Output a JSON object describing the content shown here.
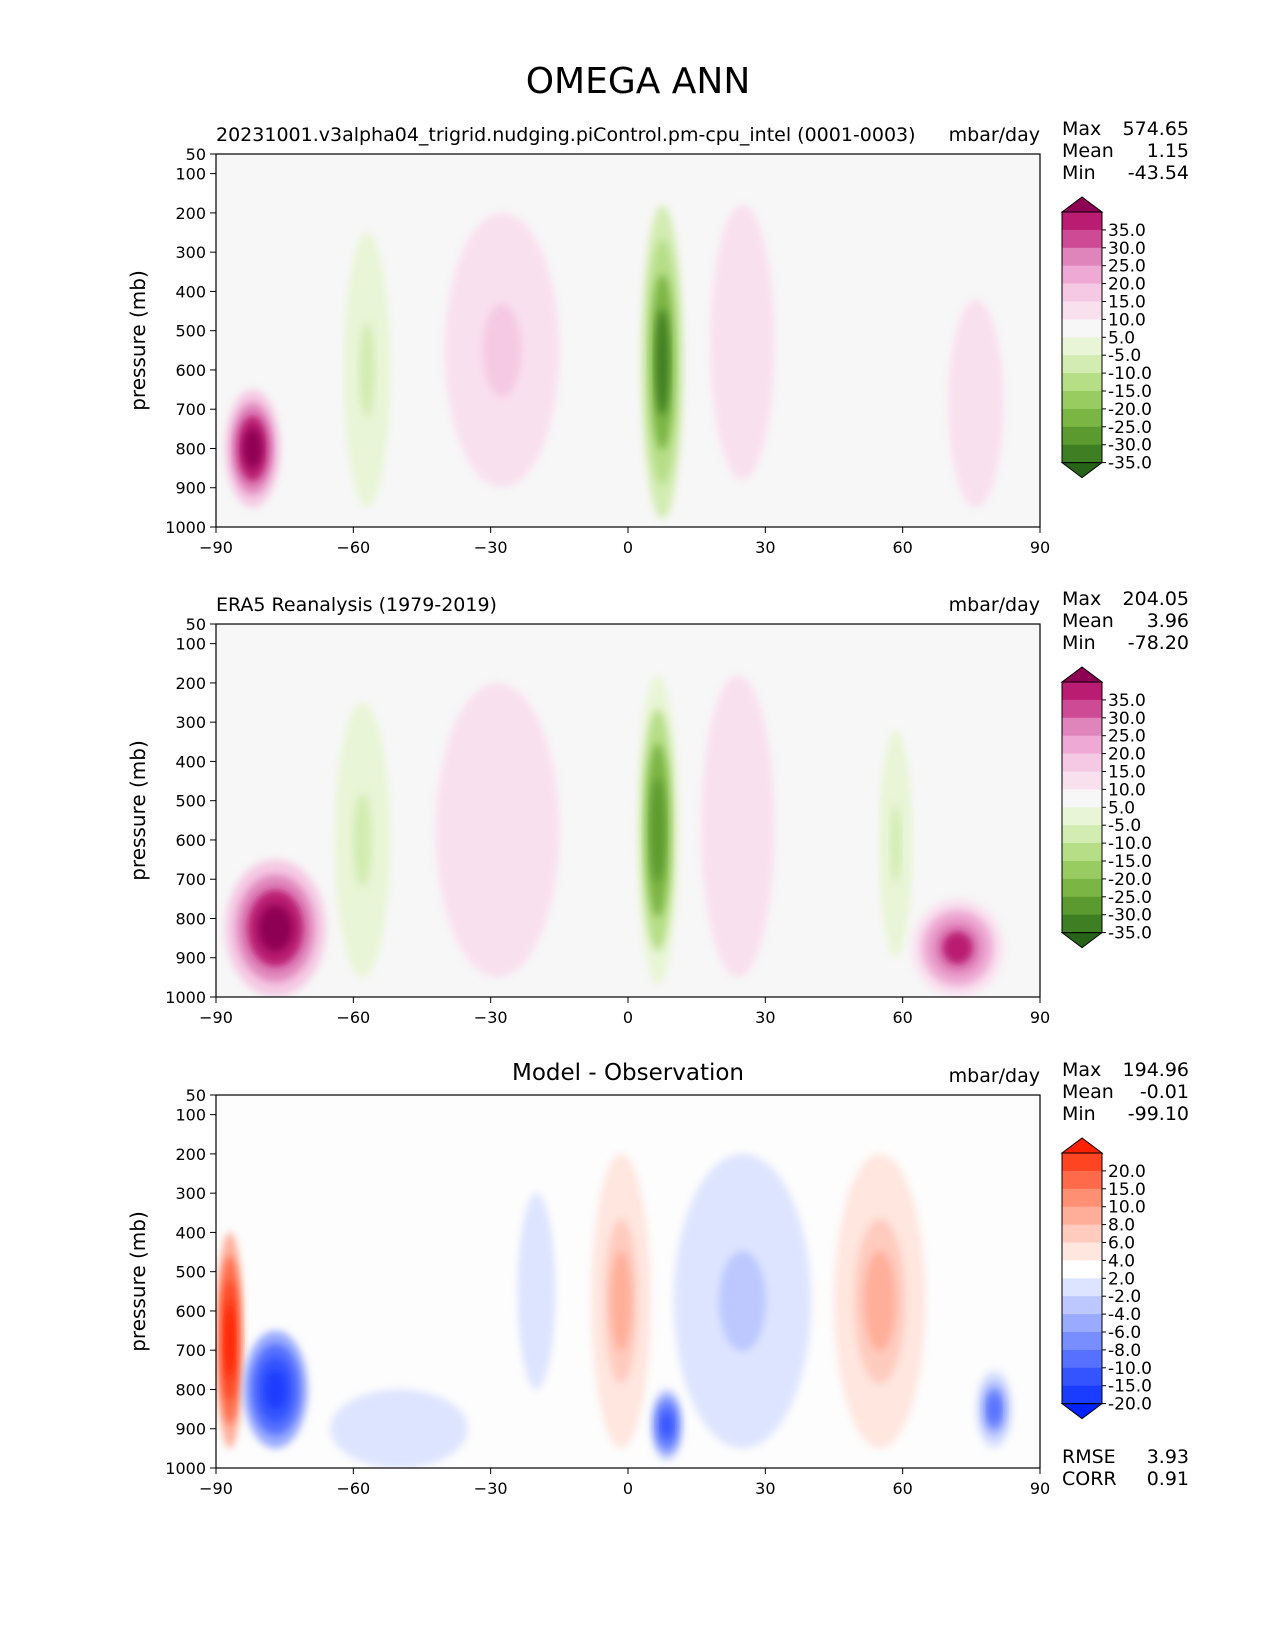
{
  "figure_title": "OMEGA ANN",
  "chart_data": [
    {
      "type": "heatmap",
      "title": "20231001.v3alpha04_trigrid.nudging.piControl.pm-cpu_intel (0001-0003)",
      "units": "mbar/day",
      "ylabel": "pressure (mb)",
      "xlim": [
        -90,
        90
      ],
      "ylim": [
        1000,
        50
      ],
      "x_ticks": [
        -90,
        -60,
        -30,
        0,
        30,
        60,
        90
      ],
      "y_ticks": [
        50,
        100,
        200,
        300,
        400,
        500,
        600,
        700,
        800,
        900,
        1000
      ],
      "stats": [
        {
          "label": "Max",
          "value": "574.65"
        },
        {
          "label": "Mean",
          "value": "1.15"
        },
        {
          "label": "Min",
          "value": "-43.54"
        }
      ],
      "colorbar": {
        "labels": [
          "35.0",
          "30.0",
          "25.0",
          "20.0",
          "15.0",
          "10.0",
          "5.0",
          "-5.0",
          "-10.0",
          "-15.0",
          "-20.0",
          "-25.0",
          "-30.0",
          "-35.0"
        ],
        "colors": [
          "#8e0152",
          "#b91c71",
          "#cf4a94",
          "#e085bb",
          "#eeaad4",
          "#f5c9e4",
          "#f9e0ef",
          "#f7f7f7",
          "#e8f5d6",
          "#d2ecb1",
          "#b6de87",
          "#98cc61",
          "#7bb544",
          "#5b9a2f",
          "#3f7f23",
          "#276419"
        ]
      },
      "features": [
        {
          "name": "southern-high-latitude-ascent",
          "lat": [
            -88,
            -76
          ],
          "p": [
            650,
            950
          ],
          "omega": 40
        },
        {
          "name": "southern-midlatitude-descent",
          "lat": [
            -62,
            -52
          ],
          "p": [
            250,
            950
          ],
          "omega": -12
        },
        {
          "name": "subtropical-south-ascent",
          "lat": [
            -40,
            -15
          ],
          "p": [
            200,
            900
          ],
          "omega": 10
        },
        {
          "name": "itcz-descent-core",
          "lat": [
            3,
            12
          ],
          "p": [
            180,
            980
          ],
          "omega": -35
        },
        {
          "name": "subtropical-north-ascent",
          "lat": [
            18,
            32
          ],
          "p": [
            180,
            880
          ],
          "omega": 8
        },
        {
          "name": "arctic-ascent",
          "lat": [
            70,
            82
          ],
          "p": [
            420,
            950
          ],
          "omega": 6
        }
      ]
    },
    {
      "type": "heatmap",
      "title": "ERA5 Reanalysis (1979-2019)",
      "units": "mbar/day",
      "ylabel": "pressure (mb)",
      "xlim": [
        -90,
        90
      ],
      "ylim": [
        1000,
        50
      ],
      "x_ticks": [
        -90,
        -60,
        -30,
        0,
        30,
        60,
        90
      ],
      "y_ticks": [
        50,
        100,
        200,
        300,
        400,
        500,
        600,
        700,
        800,
        900,
        1000
      ],
      "stats": [
        {
          "label": "Max",
          "value": "204.05"
        },
        {
          "label": "Mean",
          "value": "3.96"
        },
        {
          "label": "Min",
          "value": "-78.20"
        }
      ],
      "colorbar": {
        "labels": [
          "35.0",
          "30.0",
          "25.0",
          "20.0",
          "15.0",
          "10.0",
          "5.0",
          "-5.0",
          "-10.0",
          "-15.0",
          "-20.0",
          "-25.0",
          "-30.0",
          "-35.0"
        ],
        "colors": [
          "#8e0152",
          "#b91c71",
          "#cf4a94",
          "#e085bb",
          "#eeaad4",
          "#f5c9e4",
          "#f9e0ef",
          "#f7f7f7",
          "#e8f5d6",
          "#d2ecb1",
          "#b6de87",
          "#98cc61",
          "#7bb544",
          "#5b9a2f",
          "#3f7f23",
          "#276419"
        ]
      },
      "features": [
        {
          "name": "antarctic-ascent",
          "lat": [
            -88,
            -66
          ],
          "p": [
            650,
            1000
          ],
          "omega": 40
        },
        {
          "name": "southern-midlatitude-descent",
          "lat": [
            -64,
            -52
          ],
          "p": [
            250,
            950
          ],
          "omega": -12
        },
        {
          "name": "subtropical-south-ascent",
          "lat": [
            -42,
            -15
          ],
          "p": [
            200,
            950
          ],
          "omega": 8
        },
        {
          "name": "itcz-descent-core",
          "lat": [
            2,
            11
          ],
          "p": [
            180,
            970
          ],
          "omega": -33
        },
        {
          "name": "subtropical-north-ascent",
          "lat": [
            16,
            32
          ],
          "p": [
            180,
            950
          ],
          "omega": 8
        },
        {
          "name": "polar-front-descent",
          "lat": [
            55,
            62
          ],
          "p": [
            320,
            900
          ],
          "omega": -10
        },
        {
          "name": "arctic-ascent",
          "lat": [
            62,
            82
          ],
          "p": [
            750,
            1000
          ],
          "omega": 30
        }
      ]
    },
    {
      "type": "heatmap",
      "title": "Model - Observation",
      "units": "mbar/day",
      "ylabel": "pressure (mb)",
      "xlim": [
        -90,
        90
      ],
      "ylim": [
        1000,
        50
      ],
      "x_ticks": [
        -90,
        -60,
        -30,
        0,
        30,
        60,
        90
      ],
      "y_ticks": [
        50,
        100,
        200,
        300,
        400,
        500,
        600,
        700,
        800,
        900,
        1000
      ],
      "stats": [
        {
          "label": "Max",
          "value": "194.96"
        },
        {
          "label": "Mean",
          "value": "-0.01"
        },
        {
          "label": "Min",
          "value": "-99.10"
        }
      ],
      "metrics": [
        {
          "label": "RMSE",
          "value": "3.93"
        },
        {
          "label": "CORR",
          "value": "0.91"
        }
      ],
      "colorbar": {
        "labels": [
          "20.0",
          "15.0",
          "10.0",
          "8.0",
          "6.0",
          "4.0",
          "2.0",
          "-2.0",
          "-4.0",
          "-6.0",
          "-8.0",
          "-10.0",
          "-15.0",
          "-20.0"
        ],
        "colors": [
          "#ff2200",
          "#ff4422",
          "#ff6a4a",
          "#ff8f72",
          "#ffae99",
          "#ffcbbf",
          "#ffe6df",
          "#ffffff",
          "#dde4ff",
          "#bcc8ff",
          "#9aabff",
          "#788eff",
          "#5671ff",
          "#3454ff",
          "#1a3cff",
          "#0022ff"
        ]
      },
      "features": [
        {
          "name": "southern-pole-dipole-positive",
          "lat": [
            -90,
            -84
          ],
          "p": [
            400,
            950
          ],
          "omega": 20
        },
        {
          "name": "southern-pole-dipole-negative",
          "lat": [
            -84,
            -70
          ],
          "p": [
            650,
            950
          ],
          "omega": -20
        },
        {
          "name": "southern-ocean-negative",
          "lat": [
            -65,
            -35
          ],
          "p": [
            800,
            1000
          ],
          "omega": -2
        },
        {
          "name": "south-subtropics-negative",
          "lat": [
            -24,
            -16
          ],
          "p": [
            300,
            800
          ],
          "omega": -2
        },
        {
          "name": "equatorial-positive",
          "lat": [
            -8,
            5
          ],
          "p": [
            200,
            950
          ],
          "omega": 6
        },
        {
          "name": "itcz-negative",
          "lat": [
            5,
            12
          ],
          "p": [
            800,
            980
          ],
          "omega": -15
        },
        {
          "name": "tropical-north-negative",
          "lat": [
            10,
            40
          ],
          "p": [
            200,
            950
          ],
          "omega": -4
        },
        {
          "name": "midlatitude-north-positive",
          "lat": [
            45,
            65
          ],
          "p": [
            200,
            950
          ],
          "omega": 6
        },
        {
          "name": "arctic-negative",
          "lat": [
            76,
            84
          ],
          "p": [
            750,
            950
          ],
          "omega": -10
        }
      ]
    }
  ]
}
